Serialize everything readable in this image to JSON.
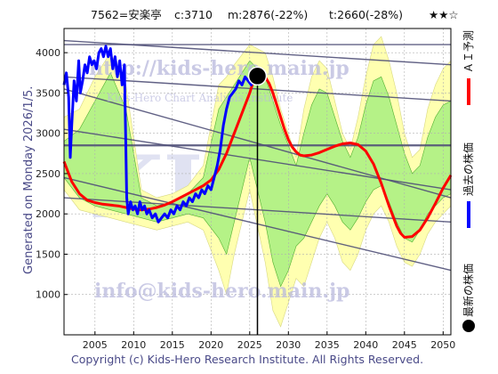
{
  "header": {
    "code_name": "7562=安楽亭",
    "current": "c:3710",
    "median": "m:2876(-22%)",
    "target": "t:2660(-28%)",
    "stars": "★★☆"
  },
  "side_label": "Generated on Monday 2026/1/5.",
  "footer": "Copyright (c) Kids-Hero Research Institute. All Rights Reserved.",
  "watermarks": {
    "url": "http://kids-hero.main.jp",
    "subtitle": "Kids-Hero Chart Analysis Institute",
    "email": "info@kids-hero.main.jp",
    "logo": "KH"
  },
  "legend": [
    {
      "label": "ＡＩ予測",
      "color": "#ff0000"
    },
    {
      "label": "過去の株価",
      "color": "#0000ff"
    },
    {
      "label": "最新の株価",
      "color": "#000000"
    }
  ],
  "colors": {
    "past_price": "#0000ff",
    "ai_forecast": "#ff0000",
    "band_outer": "#ffffb0",
    "band_inner": "#a8f080",
    "channel_lines": "#505078",
    "grid": "#b0b0b0"
  },
  "chart_data": {
    "type": "line",
    "xlim": [
      2001,
      2051
    ],
    "ylim": [
      500,
      4300
    ],
    "x_ticks": [
      2005,
      2010,
      2015,
      2020,
      2025,
      2030,
      2035,
      2040,
      2045,
      2050
    ],
    "y_ticks": [
      1000,
      1500,
      2000,
      2500,
      3000,
      3500,
      4000
    ],
    "grid": true,
    "latest_point": {
      "x": 2026.0,
      "y": 3710
    },
    "series": [
      {
        "points": [
          [
            2001.0,
            3600
          ],
          [
            2001.3,
            3750
          ],
          [
            2001.6,
            3450
          ],
          [
            2001.8,
            2700
          ],
          [
            2002.0,
            3100
          ],
          [
            2002.3,
            3650
          ],
          [
            2002.6,
            3400
          ],
          [
            2002.9,
            3900
          ],
          [
            2003.1,
            3500
          ],
          [
            2003.4,
            3650
          ],
          [
            2003.7,
            3850
          ],
          [
            2004.0,
            3750
          ],
          [
            2004.3,
            3950
          ],
          [
            2004.6,
            3850
          ],
          [
            2004.9,
            3900
          ],
          [
            2005.2,
            3800
          ],
          [
            2005.5,
            4000
          ],
          [
            2005.8,
            4050
          ],
          [
            2006.1,
            3950
          ],
          [
            2006.4,
            4080
          ],
          [
            2006.7,
            3950
          ],
          [
            2007.0,
            4050
          ],
          [
            2007.3,
            3800
          ],
          [
            2007.6,
            3950
          ],
          [
            2007.9,
            3700
          ],
          [
            2008.2,
            3900
          ],
          [
            2008.5,
            3600
          ],
          [
            2008.8,
            3850
          ],
          [
            2009.1,
            2200
          ],
          [
            2009.3,
            2000
          ],
          [
            2009.6,
            2150
          ],
          [
            2009.9,
            2050
          ],
          [
            2010.2,
            2100
          ],
          [
            2010.5,
            2000
          ],
          [
            2010.8,
            2150
          ],
          [
            2011.1,
            2050
          ],
          [
            2011.4,
            2100
          ],
          [
            2011.7,
            2000
          ],
          [
            2012.0,
            2050
          ],
          [
            2012.4,
            1950
          ],
          [
            2012.8,
            2000
          ],
          [
            2013.2,
            1900
          ],
          [
            2013.6,
            1950
          ],
          [
            2014.0,
            2000
          ],
          [
            2014.4,
            1950
          ],
          [
            2014.8,
            2050
          ],
          [
            2015.2,
            2000
          ],
          [
            2015.6,
            2100
          ],
          [
            2016.0,
            2050
          ],
          [
            2016.4,
            2150
          ],
          [
            2016.8,
            2100
          ],
          [
            2017.2,
            2200
          ],
          [
            2017.6,
            2150
          ],
          [
            2018.0,
            2250
          ],
          [
            2018.4,
            2200
          ],
          [
            2018.8,
            2300
          ],
          [
            2019.2,
            2250
          ],
          [
            2019.6,
            2350
          ],
          [
            2020.0,
            2300
          ],
          [
            2020.4,
            2450
          ],
          [
            2020.8,
            2600
          ],
          [
            2021.2,
            2800
          ],
          [
            2021.6,
            3100
          ],
          [
            2022.0,
            3300
          ],
          [
            2022.4,
            3450
          ],
          [
            2022.8,
            3500
          ],
          [
            2023.2,
            3550
          ],
          [
            2023.6,
            3650
          ],
          [
            2024.0,
            3600
          ],
          [
            2024.4,
            3700
          ],
          [
            2024.8,
            3650
          ],
          [
            2025.2,
            3600
          ],
          [
            2025.6,
            3700
          ],
          [
            2026.0,
            3710
          ]
        ]
      },
      {
        "points": [
          [
            2001.0,
            2650
          ],
          [
            2002.0,
            2400
          ],
          [
            2003.0,
            2250
          ],
          [
            2004.0,
            2170
          ],
          [
            2005.0,
            2140
          ],
          [
            2006.0,
            2120
          ],
          [
            2007.0,
            2110
          ],
          [
            2008.0,
            2100
          ],
          [
            2009.0,
            2080
          ],
          [
            2010.0,
            2060
          ],
          [
            2011.0,
            2050
          ],
          [
            2012.0,
            2060
          ],
          [
            2013.0,
            2080
          ],
          [
            2014.0,
            2110
          ],
          [
            2015.0,
            2150
          ],
          [
            2016.0,
            2200
          ],
          [
            2017.0,
            2250
          ],
          [
            2018.0,
            2300
          ],
          [
            2019.0,
            2350
          ],
          [
            2020.0,
            2420
          ],
          [
            2021.0,
            2550
          ],
          [
            2022.0,
            2750
          ],
          [
            2023.0,
            3000
          ],
          [
            2024.0,
            3250
          ],
          [
            2025.0,
            3500
          ],
          [
            2025.5,
            3650
          ],
          [
            2026.0,
            3720
          ],
          [
            2026.5,
            3740
          ],
          [
            2027.0,
            3700
          ],
          [
            2027.5,
            3620
          ],
          [
            2028.0,
            3500
          ],
          [
            2028.5,
            3350
          ],
          [
            2029.0,
            3200
          ],
          [
            2029.5,
            3050
          ],
          [
            2030.0,
            2920
          ],
          [
            2030.5,
            2830
          ],
          [
            2031.0,
            2770
          ],
          [
            2031.5,
            2730
          ],
          [
            2032.0,
            2720
          ],
          [
            2033.0,
            2730
          ],
          [
            2034.0,
            2760
          ],
          [
            2035.0,
            2800
          ],
          [
            2036.0,
            2840
          ],
          [
            2037.0,
            2870
          ],
          [
            2038.0,
            2880
          ],
          [
            2039.0,
            2860
          ],
          [
            2040.0,
            2780
          ],
          [
            2041.0,
            2620
          ],
          [
            2042.0,
            2380
          ],
          [
            2043.0,
            2100
          ],
          [
            2044.0,
            1850
          ],
          [
            2044.5,
            1760
          ],
          [
            2045.0,
            1710
          ],
          [
            2046.0,
            1720
          ],
          [
            2047.0,
            1800
          ],
          [
            2048.0,
            1950
          ],
          [
            2049.0,
            2130
          ],
          [
            2050.0,
            2320
          ],
          [
            2051.0,
            2480
          ]
        ]
      }
    ],
    "band_outer": [
      [
        2001.0,
        2300,
        3200
      ],
      [
        2003.0,
        2050,
        3300
      ],
      [
        2005.0,
        2000,
        3700
      ],
      [
        2007.0,
        1950,
        4000
      ],
      [
        2009.0,
        1900,
        3600
      ],
      [
        2011.0,
        1850,
        2300
      ],
      [
        2013.0,
        1800,
        2200
      ],
      [
        2015.0,
        1850,
        2250
      ],
      [
        2017.0,
        1900,
        2350
      ],
      [
        2019.0,
        1800,
        2600
      ],
      [
        2021.0,
        1300,
        3600
      ],
      [
        2022.0,
        1000,
        3700
      ],
      [
        2023.0,
        1500,
        3850
      ],
      [
        2025.0,
        2300,
        4100
      ],
      [
        2027.0,
        1400,
        4000
      ],
      [
        2028.0,
        800,
        3700
      ],
      [
        2029.0,
        600,
        3300
      ],
      [
        2030.0,
        900,
        3000
      ],
      [
        2031.0,
        1200,
        2700
      ],
      [
        2032.0,
        1100,
        3300
      ],
      [
        2033.0,
        1400,
        3700
      ],
      [
        2034.0,
        1700,
        3900
      ],
      [
        2035.0,
        1900,
        3800
      ],
      [
        2036.0,
        1700,
        3400
      ],
      [
        2037.0,
        1400,
        3000
      ],
      [
        2038.0,
        1300,
        2800
      ],
      [
        2039.0,
        1500,
        3200
      ],
      [
        2040.0,
        1800,
        3700
      ],
      [
        2041.0,
        2000,
        4100
      ],
      [
        2042.0,
        2100,
        4200
      ],
      [
        2043.0,
        1900,
        3900
      ],
      [
        2044.0,
        1600,
        3500
      ],
      [
        2045.0,
        1400,
        3000
      ],
      [
        2046.0,
        1350,
        2700
      ],
      [
        2047.0,
        1500,
        2800
      ],
      [
        2048.0,
        1750,
        3300
      ],
      [
        2049.0,
        1900,
        3600
      ],
      [
        2050.0,
        2000,
        3800
      ],
      [
        2051.0,
        2100,
        3900
      ]
    ],
    "band_inner": [
      [
        2001.0,
        2450,
        2900
      ],
      [
        2003.0,
        2200,
        3050
      ],
      [
        2005.0,
        2100,
        3400
      ],
      [
        2007.0,
        2050,
        3750
      ],
      [
        2009.0,
        2000,
        3300
      ],
      [
        2011.0,
        1950,
        2200
      ],
      [
        2013.0,
        1900,
        2100
      ],
      [
        2015.0,
        1950,
        2150
      ],
      [
        2017.0,
        2000,
        2250
      ],
      [
        2019.0,
        1950,
        2450
      ],
      [
        2021.0,
        1700,
        3300
      ],
      [
        2022.0,
        1500,
        3450
      ],
      [
        2023.0,
        1900,
        3600
      ],
      [
        2025.0,
        2700,
        3900
      ],
      [
        2027.0,
        1900,
        3700
      ],
      [
        2028.0,
        1400,
        3400
      ],
      [
        2029.0,
        1100,
        3100
      ],
      [
        2030.0,
        1300,
        2850
      ],
      [
        2031.0,
        1600,
        2600
      ],
      [
        2032.0,
        1700,
        3000
      ],
      [
        2033.0,
        1900,
        3350
      ],
      [
        2034.0,
        2100,
        3550
      ],
      [
        2035.0,
        2250,
        3500
      ],
      [
        2036.0,
        2100,
        3200
      ],
      [
        2037.0,
        1900,
        2900
      ],
      [
        2038.0,
        1800,
        2700
      ],
      [
        2039.0,
        1950,
        2950
      ],
      [
        2040.0,
        2150,
        3350
      ],
      [
        2041.0,
        2300,
        3650
      ],
      [
        2042.0,
        2350,
        3700
      ],
      [
        2043.0,
        2150,
        3450
      ],
      [
        2044.0,
        1900,
        3100
      ],
      [
        2045.0,
        1700,
        2750
      ],
      [
        2046.0,
        1650,
        2500
      ],
      [
        2047.0,
        1800,
        2600
      ],
      [
        2048.0,
        2000,
        2950
      ],
      [
        2049.0,
        2100,
        3200
      ],
      [
        2050.0,
        2200,
        3350
      ],
      [
        2051.0,
        2250,
        3400
      ]
    ],
    "channel_lines": [
      [
        [
          2001,
          4150
        ],
        [
          2051,
          3850
        ]
      ],
      [
        [
          2001,
          3700
        ],
        [
          2051,
          3400
        ]
      ],
      [
        [
          2001,
          3550
        ],
        [
          2051,
          2200
        ]
      ],
      [
        [
          2001,
          3050
        ],
        [
          2051,
          2300
        ]
      ],
      [
        [
          2001,
          2850
        ],
        [
          2051,
          2850
        ]
      ],
      [
        [
          2001,
          2450
        ],
        [
          2051,
          1300
        ]
      ],
      [
        [
          2001,
          2200
        ],
        [
          2051,
          1900
        ]
      ],
      [
        [
          2001,
          4100
        ],
        [
          2051,
          4100
        ]
      ]
    ]
  }
}
